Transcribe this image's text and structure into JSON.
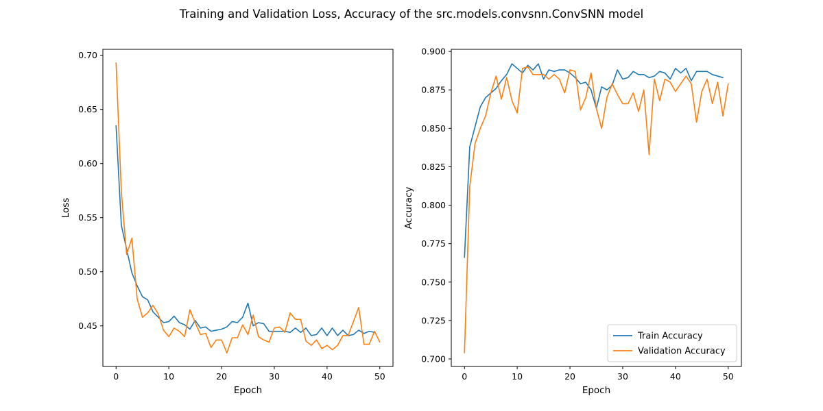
{
  "figure_title": "Training and Validation Loss, Accuracy of the src.models.convsnn.ConvSNN model",
  "colors": {
    "train": "#1f77b4",
    "validation": "#ff7f0e"
  },
  "chart_data": [
    {
      "type": "line",
      "title": "",
      "xlabel": "Epoch",
      "ylabel": "Loss",
      "xlim": [
        -2.5,
        52.5
      ],
      "ylim": [
        0.4125,
        0.7055
      ],
      "xticks": [
        0,
        10,
        20,
        30,
        40,
        50
      ],
      "xtick_labels": [
        "0",
        "10",
        "20",
        "30",
        "40",
        "50"
      ],
      "yticks": [
        0.45,
        0.5,
        0.55,
        0.6,
        0.65,
        0.7
      ],
      "ytick_labels": [
        "0.45",
        "0.50",
        "0.55",
        "0.60",
        "0.65",
        "0.70"
      ],
      "legend": "none",
      "grid": false,
      "series": [
        {
          "key": "train",
          "color": "#1f77b4",
          "x": [
            0,
            1,
            2,
            3,
            4,
            5,
            6,
            7,
            8,
            9,
            10,
            11,
            12,
            13,
            14,
            15,
            16,
            17,
            18,
            19,
            20,
            21,
            22,
            23,
            24,
            25,
            26,
            27,
            28,
            29,
            30,
            31,
            32,
            33,
            34,
            35,
            36,
            37,
            38,
            39,
            40,
            41,
            42,
            43,
            44,
            45,
            46,
            47,
            48,
            49
          ],
          "y": [
            0.635,
            0.543,
            0.521,
            0.499,
            0.487,
            0.477,
            0.474,
            0.463,
            0.458,
            0.453,
            0.454,
            0.459,
            0.453,
            0.451,
            0.447,
            0.455,
            0.448,
            0.449,
            0.445,
            0.446,
            0.447,
            0.449,
            0.454,
            0.453,
            0.458,
            0.471,
            0.45,
            0.453,
            0.452,
            0.445,
            0.445,
            0.445,
            0.445,
            0.444,
            0.448,
            0.444,
            0.448,
            0.441,
            0.442,
            0.448,
            0.441,
            0.448,
            0.441,
            0.446,
            0.441,
            0.442,
            0.446,
            0.443,
            0.445,
            0.444
          ]
        },
        {
          "key": "validation",
          "color": "#ff7f0e",
          "x": [
            0,
            1,
            2,
            3,
            4,
            5,
            6,
            7,
            8,
            9,
            10,
            11,
            12,
            13,
            14,
            15,
            16,
            17,
            18,
            19,
            20,
            21,
            22,
            23,
            24,
            25,
            26,
            27,
            28,
            29,
            30,
            31,
            32,
            33,
            34,
            35,
            36,
            37,
            38,
            39,
            40,
            41,
            42,
            43,
            44,
            45,
            46,
            47,
            48,
            49,
            50
          ],
          "y": [
            0.693,
            0.574,
            0.516,
            0.531,
            0.475,
            0.458,
            0.462,
            0.469,
            0.461,
            0.446,
            0.44,
            0.448,
            0.445,
            0.44,
            0.465,
            0.453,
            0.442,
            0.443,
            0.43,
            0.437,
            0.437,
            0.425,
            0.439,
            0.439,
            0.451,
            0.442,
            0.46,
            0.44,
            0.437,
            0.435,
            0.448,
            0.449,
            0.444,
            0.462,
            0.456,
            0.456,
            0.436,
            0.432,
            0.437,
            0.429,
            0.432,
            0.428,
            0.432,
            0.441,
            0.441,
            0.454,
            0.467,
            0.433,
            0.433,
            0.445,
            0.435
          ]
        }
      ]
    },
    {
      "type": "line",
      "title": "",
      "xlabel": "Epoch",
      "ylabel": "Accuracy",
      "xlim": [
        -2.5,
        52.5
      ],
      "ylim": [
        0.6951,
        0.9014
      ],
      "xticks": [
        0,
        10,
        20,
        30,
        40,
        50
      ],
      "xtick_labels": [
        "0",
        "10",
        "20",
        "30",
        "40",
        "50"
      ],
      "yticks": [
        0.7,
        0.725,
        0.75,
        0.775,
        0.8,
        0.825,
        0.85,
        0.875,
        0.9
      ],
      "ytick_labels": [
        "0.700",
        "0.725",
        "0.750",
        "0.775",
        "0.800",
        "0.825",
        "0.850",
        "0.875",
        "0.900"
      ],
      "legend": "lower-right",
      "grid": false,
      "series": [
        {
          "key": "train",
          "name": "Train Accuracy",
          "color": "#1f77b4",
          "x": [
            0,
            1,
            2,
            3,
            4,
            5,
            6,
            7,
            8,
            9,
            10,
            11,
            12,
            13,
            14,
            15,
            16,
            17,
            18,
            19,
            20,
            21,
            22,
            23,
            24,
            25,
            26,
            27,
            28,
            29,
            30,
            31,
            32,
            33,
            34,
            35,
            36,
            37,
            38,
            39,
            40,
            41,
            42,
            43,
            44,
            45,
            46,
            47,
            48,
            49
          ],
          "y": [
            0.766,
            0.838,
            0.851,
            0.864,
            0.87,
            0.873,
            0.876,
            0.881,
            0.885,
            0.892,
            0.889,
            0.886,
            0.891,
            0.888,
            0.892,
            0.882,
            0.888,
            0.887,
            0.888,
            0.888,
            0.886,
            0.883,
            0.879,
            0.88,
            0.875,
            0.863,
            0.877,
            0.875,
            0.878,
            0.888,
            0.882,
            0.883,
            0.887,
            0.885,
            0.885,
            0.883,
            0.884,
            0.887,
            0.886,
            0.882,
            0.889,
            0.886,
            0.889,
            0.881,
            0.887,
            0.887,
            0.887,
            0.885,
            0.884,
            0.883
          ]
        },
        {
          "key": "validation",
          "name": "Validation Accuracy",
          "color": "#ff7f0e",
          "x": [
            0,
            1,
            2,
            3,
            4,
            5,
            6,
            7,
            8,
            9,
            10,
            11,
            12,
            13,
            14,
            15,
            16,
            17,
            18,
            19,
            20,
            21,
            22,
            23,
            24,
            25,
            26,
            27,
            28,
            29,
            30,
            31,
            32,
            33,
            34,
            35,
            36,
            37,
            38,
            39,
            40,
            41,
            42,
            43,
            44,
            45,
            46,
            47,
            48,
            49,
            50
          ],
          "y": [
            0.704,
            0.812,
            0.84,
            0.85,
            0.858,
            0.873,
            0.884,
            0.869,
            0.883,
            0.868,
            0.86,
            0.889,
            0.89,
            0.885,
            0.885,
            0.885,
            0.882,
            0.885,
            0.882,
            0.873,
            0.888,
            0.887,
            0.862,
            0.87,
            0.886,
            0.863,
            0.85,
            0.87,
            0.879,
            0.872,
            0.866,
            0.866,
            0.873,
            0.861,
            0.875,
            0.833,
            0.882,
            0.868,
            0.882,
            0.88,
            0.874,
            0.879,
            0.884,
            0.879,
            0.854,
            0.874,
            0.882,
            0.866,
            0.88,
            0.858,
            0.879
          ]
        }
      ]
    }
  ]
}
